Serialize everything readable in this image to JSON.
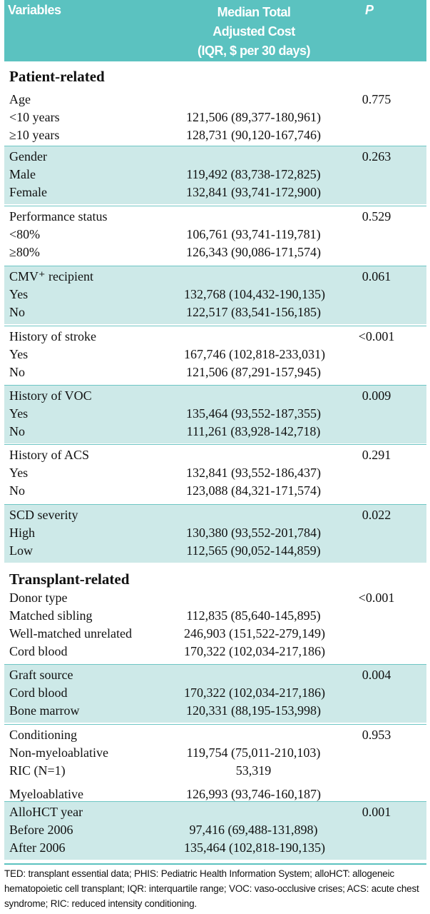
{
  "header": {
    "variables": "Variables",
    "cost_line1": "Median Total",
    "cost_line2": "Adjusted Cost",
    "cost_line3": "(IQR, $ per 30 days)",
    "p": "P"
  },
  "sections": [
    {
      "title": "Patient-related",
      "groups": [
        {
          "name": "Age",
          "p": "0.775",
          "shaded": false,
          "rows": [
            {
              "label": "<10 years",
              "cost": "121,506 (89,377-180,961)"
            },
            {
              "label": "≥10 years",
              "cost": "128,731 (90,120-167,746)"
            }
          ]
        },
        {
          "name": "Gender",
          "p": "0.263",
          "shaded": true,
          "rows": [
            {
              "label": "Male",
              "cost": "119,492 (83,738-172,825)"
            },
            {
              "label": "Female",
              "cost": "132,841 (93,741-172,900)"
            }
          ]
        },
        {
          "name": "Performance status",
          "p": "0.529",
          "shaded": false,
          "rows": [
            {
              "label": "<80%",
              "cost": "106,761 (93,741-119,781)"
            },
            {
              "label": "≥80%",
              "cost": "126,343 (90,086-171,574)"
            }
          ]
        },
        {
          "name": "CMV⁺ recipient",
          "p": "0.061",
          "shaded": true,
          "rows": [
            {
              "label": "Yes",
              "cost": "132,768 (104,432-190,135)"
            },
            {
              "label": "No",
              "cost": "122,517 (83,541-156,185)"
            }
          ]
        },
        {
          "name": "History of stroke",
          "p": "<0.001",
          "shaded": false,
          "rows": [
            {
              "label": "Yes",
              "cost": "167,746 (102,818-233,031)"
            },
            {
              "label": "No",
              "cost": "121,506 (87,291-157,945)"
            }
          ]
        },
        {
          "name": "History of VOC",
          "p": "0.009",
          "shaded": true,
          "rows": [
            {
              "label": "Yes",
              "cost": "135,464 (93,552-187,355)"
            },
            {
              "label": "No",
              "cost": "111,261 (83,928-142,718)"
            }
          ]
        },
        {
          "name": "History of ACS",
          "p": "0.291",
          "shaded": false,
          "rows": [
            {
              "label": "Yes",
              "cost": "132,841 (93,552-186,437)"
            },
            {
              "label": "No",
              "cost": "123,088 (84,321-171,574)"
            }
          ]
        },
        {
          "name": "SCD severity",
          "p": "0.022",
          "shaded": true,
          "rows": [
            {
              "label": "High",
              "cost": "130,380 (93,552-201,784)"
            },
            {
              "label": "Low",
              "cost": "112,565 (90,052-144,859)"
            }
          ]
        }
      ]
    },
    {
      "title": "Transplant-related",
      "groups": [
        {
          "name": "Donor type",
          "p": "<0.001",
          "shaded": false,
          "rows": [
            {
              "label": "Matched sibling",
              "cost": "112,835 (85,640-145,895)"
            },
            {
              "label": "Well-matched unrelated",
              "cost": "246,903 (151,522-279,149)"
            },
            {
              "label": "Cord blood",
              "cost": "170,322 (102,034-217,186)"
            }
          ]
        },
        {
          "name": "Graft source",
          "p": "0.004",
          "shaded": true,
          "rows": [
            {
              "label": "Cord blood",
              "cost": "170,322 (102,034-217,186)"
            },
            {
              "label": "Bone marrow",
              "cost": "120,331 (88,195-153,998)"
            }
          ]
        },
        {
          "name": "Conditioning",
          "p": "0.953",
          "shaded": false,
          "rows": [
            {
              "label": "Non-myeloablative",
              "cost": "119,754 (75,011-210,103)"
            },
            {
              "label": "RIC (N=1)",
              "cost": "53,319"
            },
            {
              "label": "Myeloablative",
              "cost": "126,993 (93,746-160,187)"
            }
          ]
        },
        {
          "name": "AlloHCT year",
          "p": "0.001",
          "shaded": true,
          "rows": [
            {
              "label": "Before 2006",
              "cost": "97,416 (69,488-131,898)"
            },
            {
              "label": "After 2006",
              "cost": "135,464 (102,818-190,135)"
            }
          ]
        }
      ]
    }
  ],
  "footnote": "TED: transplant essential data; PHIS: Pediatric Health Information System; alloHCT: allogeneic hematopoietic cell transplant; IQR: interquartile range; VOC: vaso-occlusive crises; ACS: acute chest syndrome; RIC: reduced intensity conditioning."
}
